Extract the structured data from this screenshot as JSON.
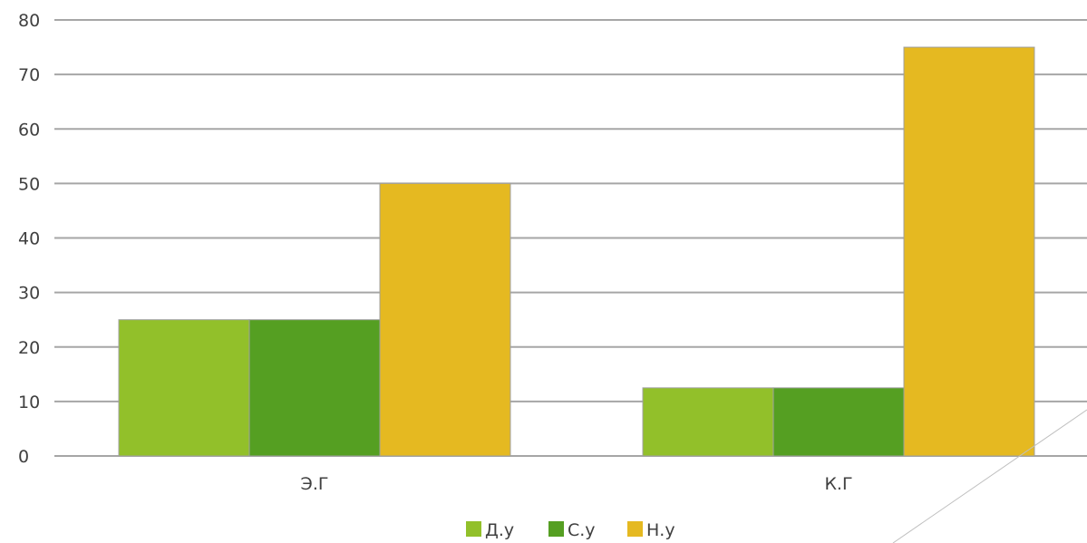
{
  "chart_data": {
    "type": "bar",
    "categories": [
      "Э.Г",
      "К.Г"
    ],
    "series": [
      {
        "name": "Д.у",
        "values": [
          25,
          12.5
        ],
        "color": "#92c02a"
      },
      {
        "name": "С.у",
        "values": [
          25,
          12.5
        ],
        "color": "#559f22"
      },
      {
        "name": "Н.у",
        "values": [
          50,
          75
        ],
        "color": "#e5b921"
      }
    ],
    "ylim": [
      0,
      80
    ],
    "yticks": [
      0,
      10,
      20,
      30,
      40,
      50,
      60,
      70,
      80
    ],
    "grid": true,
    "legend": "bottom",
    "title": "",
    "xlabel": "",
    "ylabel": ""
  },
  "colors": {
    "grid": "#a6a6a6",
    "axis_text": "#404040",
    "decoration_line": "#bfbfbf"
  }
}
